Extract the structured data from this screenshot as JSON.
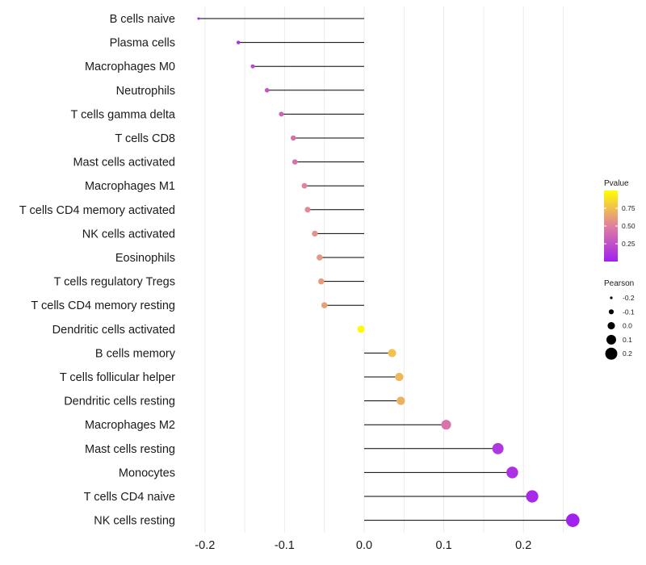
{
  "chart_data": {
    "type": "lollipop",
    "title": "",
    "xlabel": "",
    "ylabel": "",
    "xlim": [
      -0.2,
      0.26
    ],
    "xticks": [
      -0.2,
      -0.1,
      0.0,
      0.1,
      0.2
    ],
    "x_tick_labels": [
      "-0.2",
      "-0.1",
      "0.0",
      "0.1",
      "0.2"
    ],
    "grid": true,
    "categories": [
      "B cells naive",
      "Plasma cells",
      "Macrophages M0",
      "Neutrophils",
      "T cells gamma delta",
      "T cells CD8",
      "Mast cells activated",
      "Macrophages M1",
      "T cells CD4 memory activated",
      "NK cells activated",
      "Eosinophils",
      "T cells regulatory  Tregs ",
      "T cells CD4 memory resting",
      "Dendritic cells activated",
      "B cells memory",
      "T cells follicular helper",
      "Dendritic cells resting",
      "Macrophages M2",
      "Mast cells resting",
      "Monocytes",
      "T cells CD4 naive",
      "NK cells resting"
    ],
    "pearson": [
      -0.208,
      -0.158,
      -0.14,
      -0.122,
      -0.104,
      -0.089,
      -0.087,
      -0.075,
      -0.071,
      -0.062,
      -0.056,
      -0.054,
      -0.05,
      -0.004,
      0.035,
      0.044,
      0.046,
      0.103,
      0.168,
      0.186,
      0.211,
      0.262
    ],
    "pvalue": [
      0.02,
      0.1,
      0.22,
      0.28,
      0.35,
      0.42,
      0.43,
      0.52,
      0.54,
      0.58,
      0.6,
      0.61,
      0.63,
      0.98,
      0.76,
      0.72,
      0.7,
      0.44,
      0.12,
      0.09,
      0.05,
      0.01
    ],
    "legend_color": {
      "title": "Pvalue",
      "ticks": [
        0.75,
        0.5,
        0.25
      ],
      "tick_labels": [
        "0.75",
        "0.50",
        "0.25"
      ],
      "low_color": "#a020f0",
      "mid_color": "#e07fa0",
      "high_color": "#ffff00",
      "position": "right"
    },
    "legend_size": {
      "title": "Pearson",
      "values": [
        -0.2,
        -0.1,
        0.0,
        0.1,
        0.2
      ],
      "labels": [
        "-0.2",
        "-0.1",
        "0.0",
        "0.1",
        "0.2"
      ],
      "position": "right"
    }
  }
}
